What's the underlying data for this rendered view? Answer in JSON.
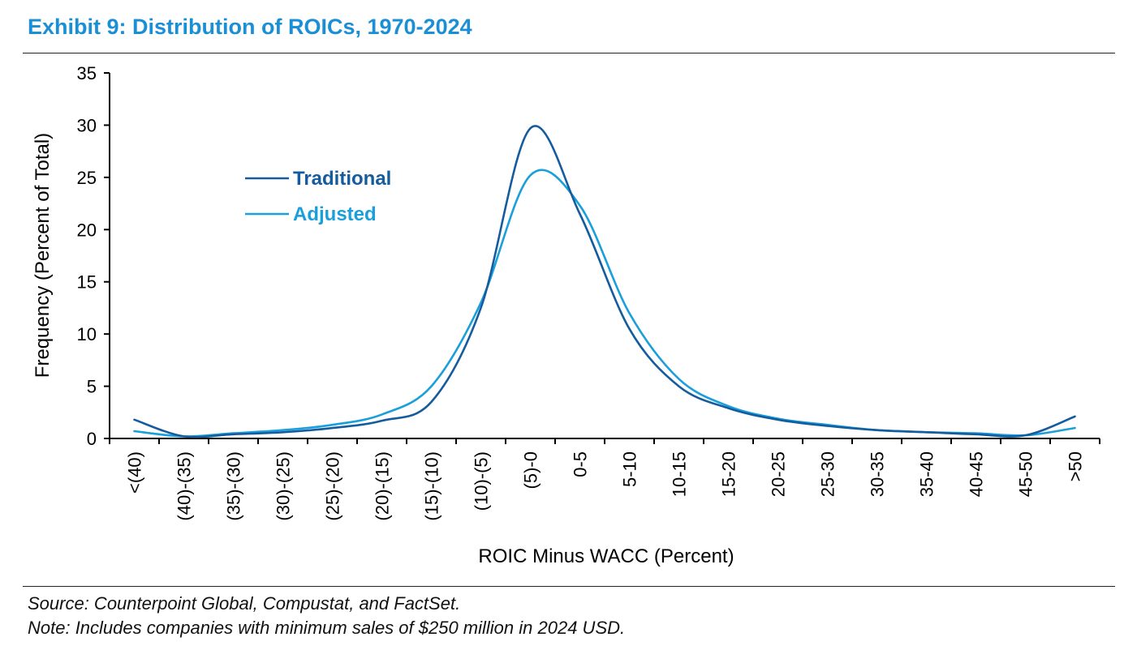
{
  "title": "Exhibit 9: Distribution of ROICs, 1970-2024",
  "footer": {
    "source": "Source: Counterpoint Global, Compustat, and FactSet.",
    "note": "Note: Includes companies with minimum sales of $250 million in 2024 USD."
  },
  "colors": {
    "title": "#1a8fd6",
    "traditional": "#145c9e",
    "adjusted": "#1a9fda",
    "axis": "#000000"
  },
  "chart_data": {
    "type": "line",
    "xlabel": "ROIC Minus WACC (Percent)",
    "ylabel": "Frequency (Percent of Total)",
    "ylim": [
      0,
      35
    ],
    "yticks": [
      0,
      5,
      10,
      15,
      20,
      25,
      30,
      35
    ],
    "grid": false,
    "legend_position": "upper-left",
    "categories": [
      "<(40)",
      "(40)-(35)",
      "(35)-(30)",
      "(30)-(25)",
      "(25)-(20)",
      "(20)-(15)",
      "(15)-(10)",
      "(10)-(5)",
      "(5)-0",
      "0-5",
      "5-10",
      "10-15",
      "15-20",
      "20-25",
      "25-30",
      "30-35",
      "35-40",
      "40-45",
      "45-50",
      ">50"
    ],
    "series": [
      {
        "name": "Traditional",
        "values": [
          1.8,
          0.2,
          0.4,
          0.6,
          1.0,
          1.7,
          3.5,
          12.5,
          29.7,
          21.5,
          10.5,
          5.0,
          2.9,
          1.8,
          1.2,
          0.8,
          0.6,
          0.4,
          0.3,
          2.1
        ]
      },
      {
        "name": "Adjusted",
        "values": [
          0.7,
          0.2,
          0.5,
          0.8,
          1.3,
          2.3,
          5.0,
          13.0,
          25.2,
          22.3,
          12.0,
          5.7,
          3.1,
          1.9,
          1.3,
          0.8,
          0.6,
          0.5,
          0.3,
          1.0
        ]
      }
    ]
  }
}
